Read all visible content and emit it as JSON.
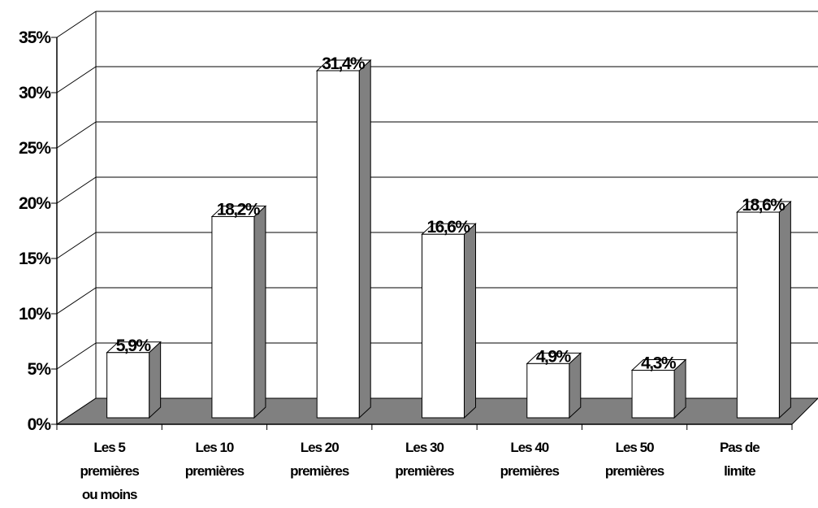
{
  "chart_data": {
    "type": "bar",
    "categories": [
      [
        "Les 5",
        "premières",
        "ou moins"
      ],
      [
        "Les 10",
        "premières"
      ],
      [
        "Les 20",
        "premières"
      ],
      [
        "Les 30",
        "premières"
      ],
      [
        "Les 40",
        "premières"
      ],
      [
        "Les 50",
        "premières"
      ],
      [
        "Pas de",
        "limite"
      ]
    ],
    "values": [
      5.9,
      18.2,
      31.4,
      16.6,
      4.9,
      4.3,
      18.6
    ],
    "data_labels": [
      "5,9%",
      "18,2%",
      "31,4%",
      "16,6%",
      "4,9%",
      "4,3%",
      "18,6%"
    ],
    "y_ticks": [
      "0%",
      "5%",
      "10%",
      "15%",
      "20%",
      "25%",
      "30%",
      "35%"
    ],
    "ylim": [
      0,
      35
    ],
    "grid": true,
    "three_d": true,
    "colors": {
      "bar_front": "#ffffff",
      "bar_side": "#808080",
      "bar_top": "#ffffff",
      "floor": "#808080",
      "line": "#000000"
    }
  }
}
